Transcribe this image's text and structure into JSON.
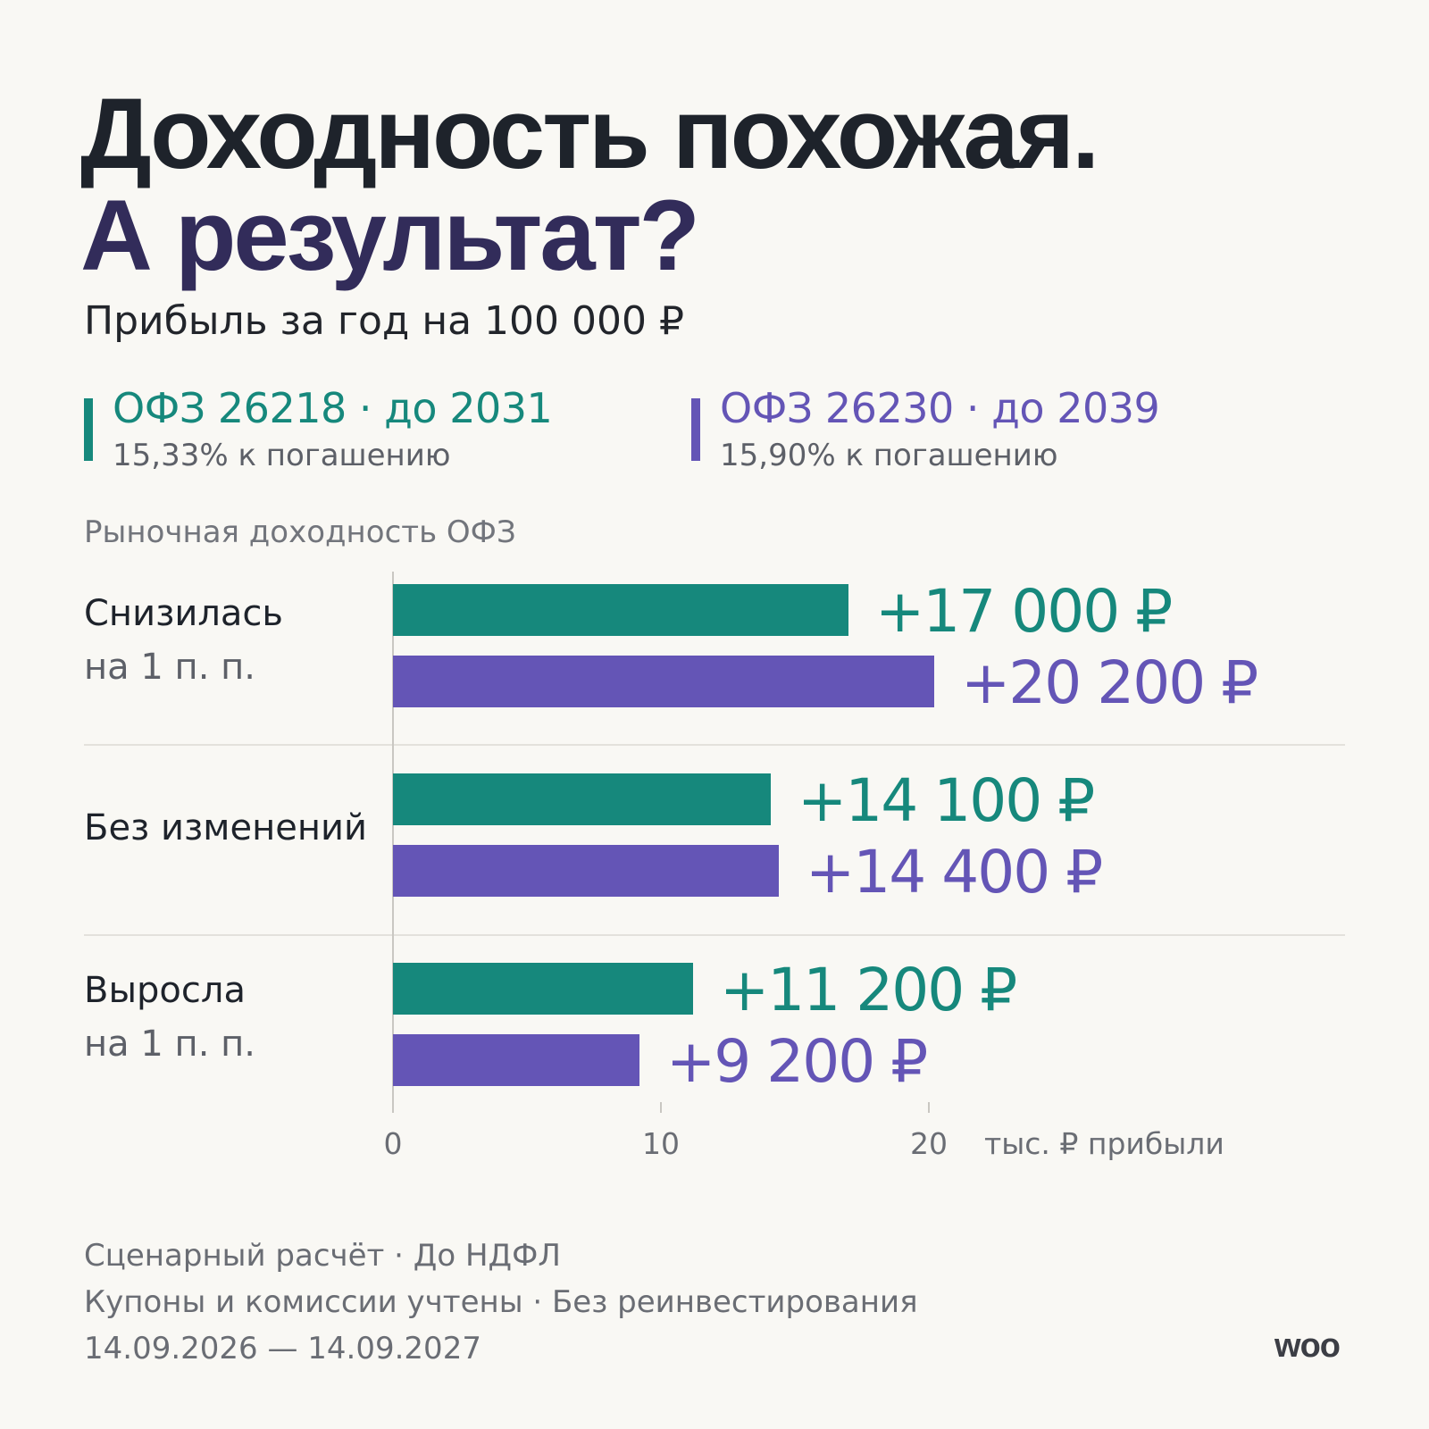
{
  "header": {
    "title_line1": "Доходность похожая.",
    "title_line2": "А результат?",
    "subtitle": "Прибыль за год на 100 000 ₽"
  },
  "legend": [
    {
      "name": "ОФЗ 26218 · до 2031",
      "sub": "15,33% к погашению",
      "color": "#16887c"
    },
    {
      "name": "ОФЗ 26230 · до 2039",
      "sub": "15,90% к погашению",
      "color": "#6455b6"
    }
  ],
  "section_label": "Рыночная доходность ОФЗ",
  "chart_data": {
    "type": "bar",
    "orientation": "horizontal",
    "categories": [
      {
        "label": "Снизилась",
        "sublabel": "на 1 п. п."
      },
      {
        "label": "Без изменений",
        "sublabel": ""
      },
      {
        "label": "Выросла",
        "sublabel": "на 1 п. п."
      }
    ],
    "series": [
      {
        "name": "ОФЗ 26218 · до 2031",
        "color": "#16887c",
        "values": [
          17000,
          14100,
          11200
        ],
        "labels": [
          "+17 000 ₽",
          "+14 100 ₽",
          "+11 200 ₽"
        ]
      },
      {
        "name": "ОФЗ 26230 · до 2039",
        "color": "#6455b6",
        "values": [
          20200,
          14400,
          9200
        ],
        "labels": [
          "+20 200 ₽",
          "+14 400 ₽",
          "+9 200 ₽"
        ]
      }
    ],
    "xticks": [
      "0",
      "10",
      "20"
    ],
    "xtick_values": [
      0,
      10000,
      20000
    ],
    "xlabel": "тыс. ₽ прибыли",
    "xlim": [
      0,
      20000
    ]
  },
  "footer": {
    "line1": "Сценарный расчёт · До НДФЛ",
    "line2": "Купоны и комиссии учтены · Без реинвестирования",
    "line3": "14.09.2026 — 14.09.2027",
    "logo": "woo"
  }
}
